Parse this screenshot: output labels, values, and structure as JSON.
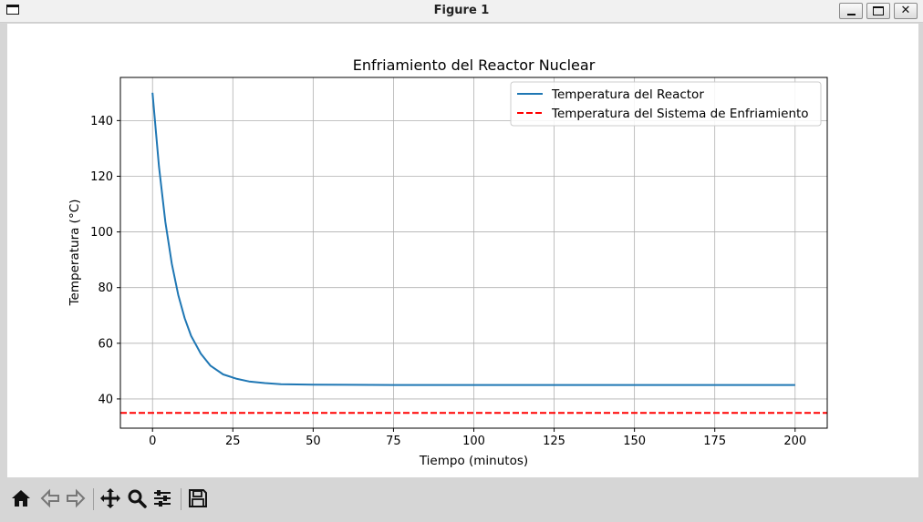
{
  "window": {
    "title": "Figure 1"
  },
  "toolbar": {
    "buttons": [
      {
        "icon": "home-icon"
      },
      {
        "icon": "back-arrow-icon"
      },
      {
        "icon": "forward-arrow-icon"
      },
      {
        "icon": "pan-icon"
      },
      {
        "icon": "zoom-icon"
      },
      {
        "icon": "subplots-config-icon"
      },
      {
        "icon": "save-icon"
      }
    ]
  },
  "chart_data": {
    "type": "line",
    "title": "Enfriamiento del Reactor Nuclear",
    "xlabel": "Tiempo (minutos)",
    "ylabel": "Temperatura (°C)",
    "xlim": [
      -10,
      210
    ],
    "ylim": [
      29.5,
      155.5
    ],
    "xticks": [
      0,
      25,
      50,
      75,
      100,
      125,
      150,
      175,
      200
    ],
    "yticks": [
      40,
      60,
      80,
      100,
      120,
      140
    ],
    "grid": true,
    "legend_position": "top-right",
    "series": [
      {
        "name": "Temperatura del Reactor",
        "color": "#1f77b4",
        "style": "solid",
        "x": [
          0,
          2,
          4,
          6,
          8,
          10,
          12,
          15,
          18,
          22,
          26,
          30,
          35,
          40,
          50,
          75,
          100,
          125,
          150,
          175,
          200
        ],
        "y": [
          150,
          123.5,
          103.6,
          88.5,
          77.4,
          69,
          62.7,
          56.3,
          52,
          48.8,
          47.3,
          46.3,
          45.7,
          45.3,
          45.1,
          45,
          45,
          45,
          45,
          45,
          45
        ]
      },
      {
        "name": "Temperatura del Sistema de Enfriamiento",
        "color": "#ff0000",
        "style": "dashed",
        "x": [
          -10,
          210
        ],
        "y": [
          35,
          35
        ]
      }
    ]
  }
}
